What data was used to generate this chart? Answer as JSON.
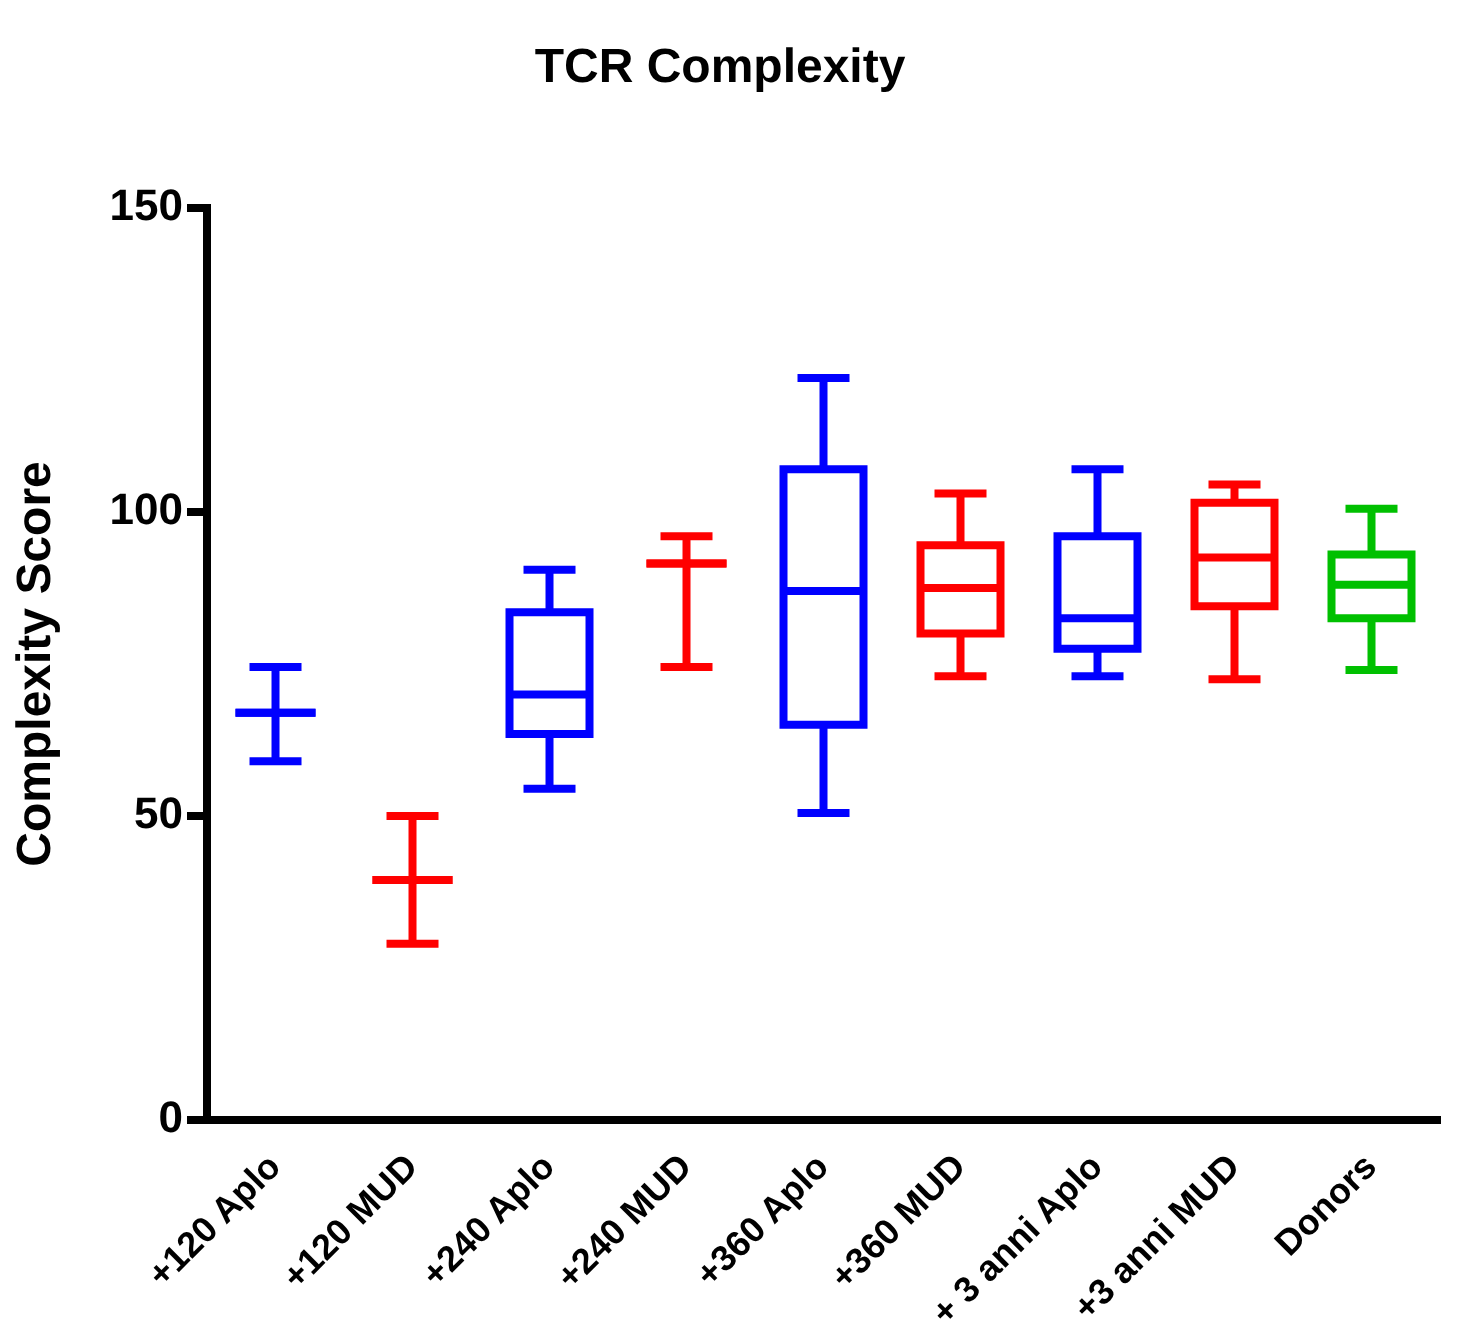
{
  "chart_data": {
    "type": "box",
    "title": "TCR Complexity",
    "ylabel": "Complexity Score",
    "categories": [
      "+120 Aplo",
      "+120 MUD",
      "+240 Aplo",
      "+240 MUD",
      "+360 Aplo",
      "+360 MUD",
      "+ 3 anni Aplo",
      "+3 anni MUD",
      "Donors"
    ],
    "colors": [
      "#0000ff",
      "#ff0000",
      "#0000ff",
      "#ff0000",
      "#0000ff",
      "#ff0000",
      "#0000ff",
      "#ff0000",
      "#00c000"
    ],
    "boxes": [
      {
        "low": 59,
        "q1": 67,
        "median": 67,
        "q3": 67,
        "high": 74.5
      },
      {
        "low": 29,
        "q1": 39.5,
        "median": 39.5,
        "q3": 39.5,
        "high": 50
      },
      {
        "low": 54.5,
        "q1": 63.5,
        "median": 70,
        "q3": 83.5,
        "high": 90.5
      },
      {
        "low": 74.5,
        "q1": 91.5,
        "median": 91.5,
        "q3": 91.5,
        "high": 96
      },
      {
        "low": 50.5,
        "q1": 65,
        "median": 87,
        "q3": 107,
        "high": 122
      },
      {
        "low": 73,
        "q1": 80,
        "median": 87.5,
        "q3": 94.5,
        "high": 103
      },
      {
        "low": 73,
        "q1": 77.5,
        "median": 82.5,
        "q3": 96,
        "high": 107
      },
      {
        "low": 72.5,
        "q1": 84.5,
        "median": 92.5,
        "q3": 101.5,
        "high": 104.5
      },
      {
        "low": 74,
        "q1": 82.5,
        "median": 88,
        "q3": 93,
        "high": 100.5
      }
    ],
    "ylim": [
      0,
      150
    ],
    "yticks": [
      0,
      50,
      100,
      150
    ],
    "grid": false,
    "legend": false
  }
}
